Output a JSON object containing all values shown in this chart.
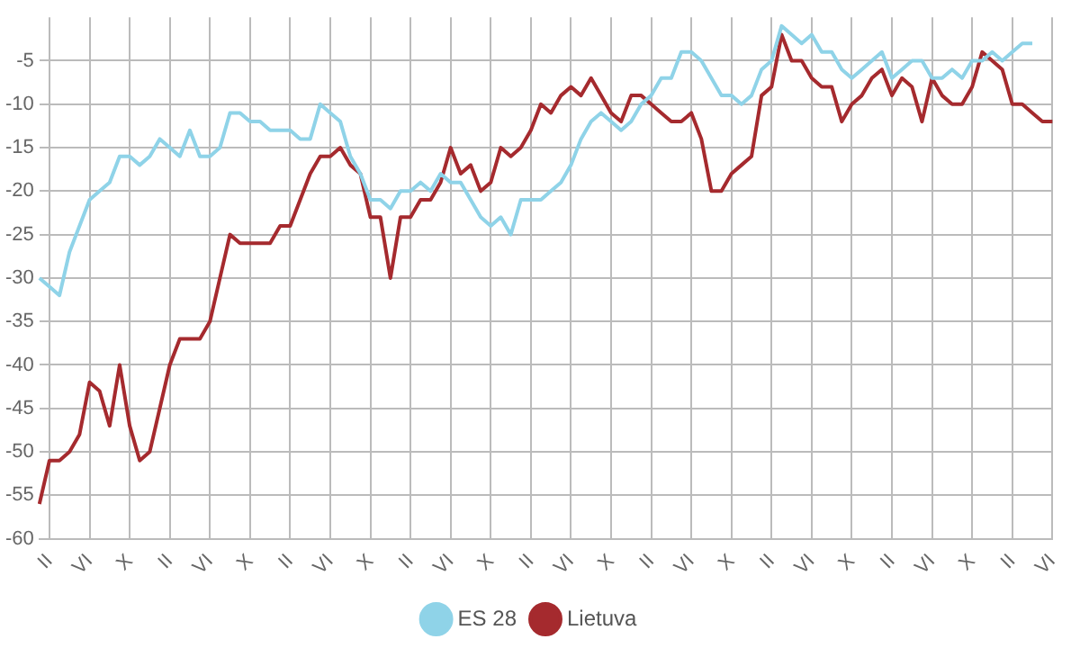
{
  "chart_data": {
    "type": "line",
    "categories": [
      null,
      "II",
      null,
      null,
      null,
      "VI",
      null,
      null,
      null,
      "X",
      null,
      null,
      null,
      "II",
      null,
      null,
      null,
      "VI",
      null,
      null,
      null,
      "X",
      null,
      null,
      null,
      "II",
      null,
      null,
      null,
      "VI",
      null,
      null,
      null,
      "X",
      null,
      null,
      null,
      "II",
      null,
      null,
      null,
      "VI",
      null,
      null,
      null,
      "X",
      null,
      null,
      null,
      "II",
      null,
      null,
      null,
      "VI",
      null,
      null,
      null,
      "X",
      null,
      null,
      null,
      "II",
      null,
      null,
      null,
      "VI",
      null,
      null,
      null,
      "X",
      null,
      null,
      null,
      "II",
      null,
      null,
      null,
      "VI",
      null,
      null,
      null,
      "X",
      null,
      null,
      null,
      "II",
      null,
      null,
      null,
      "VI",
      null,
      null,
      null,
      "X",
      null,
      null,
      null,
      "II",
      null,
      null,
      null,
      "VI"
    ],
    "series": [
      {
        "name": "ES 28",
        "color": "#8fd3e8",
        "values": [
          -30,
          -31,
          -32,
          -27,
          -24,
          -21,
          -20,
          -19,
          -16,
          -16,
          -17,
          -16,
          -14,
          -15,
          -16,
          -13,
          -16,
          -16,
          -15,
          -11,
          -11,
          -12,
          -12,
          -13,
          -13,
          -13,
          -14,
          -14,
          -10,
          -11,
          -12,
          -16,
          -18,
          -21,
          -21,
          -22,
          -20,
          -20,
          -19,
          -20,
          -18,
          -19,
          -19,
          -21,
          -23,
          -24,
          -23,
          -25,
          -21,
          -21,
          -21,
          -20,
          -19,
          -17,
          -14,
          -12,
          -11,
          -12,
          -13,
          -12,
          -10,
          -9,
          -7,
          -7,
          -4,
          -4,
          -5,
          -7,
          -9,
          -9,
          -10,
          -9,
          -6,
          -5,
          -1,
          -2,
          -3,
          -2,
          -4,
          -4,
          -6,
          -7,
          -6,
          -5,
          -4,
          -7,
          -6,
          -5,
          -5,
          -7,
          -7,
          -6,
          -7,
          -5,
          -5,
          -4,
          -5,
          -4,
          -3,
          -3,
          null,
          null
        ]
      },
      {
        "name": "Lietuva",
        "color": "#a52a2e",
        "values": [
          -56,
          -51,
          -51,
          -50,
          -48,
          -42,
          -43,
          -47,
          -40,
          -47,
          -51,
          -50,
          -45,
          -40,
          -37,
          -37,
          -37,
          -35,
          -30,
          -25,
          -26,
          -26,
          -26,
          -26,
          -24,
          -24,
          -21,
          -18,
          -16,
          -16,
          -15,
          -17,
          -18,
          -23,
          -23,
          -30,
          -23,
          -23,
          -21,
          -21,
          -19,
          -15,
          -18,
          -17,
          -20,
          -19,
          -15,
          -16,
          -15,
          -13,
          -10,
          -11,
          -9,
          -8,
          -9,
          -7,
          -9,
          -11,
          -12,
          -9,
          -9,
          -10,
          -11,
          -12,
          -12,
          -11,
          -14,
          -20,
          -20,
          -18,
          -17,
          -16,
          -9,
          -8,
          -2,
          -5,
          -5,
          -7,
          -8,
          -8,
          -12,
          -10,
          -9,
          -7,
          -6,
          -9,
          -7,
          -8,
          -12,
          -7,
          -9,
          -10,
          -10,
          -8,
          -4,
          -5,
          -6,
          -10,
          -10,
          -11,
          -12,
          -12
        ]
      }
    ],
    "ylim": [
      -60,
      0
    ],
    "yticks": [
      -60,
      -55,
      -50,
      -45,
      -40,
      -35,
      -30,
      -25,
      -20,
      -15,
      -10,
      -5
    ],
    "grid": true,
    "legend": "bottom",
    "marker": "none",
    "line_style": "solid"
  }
}
